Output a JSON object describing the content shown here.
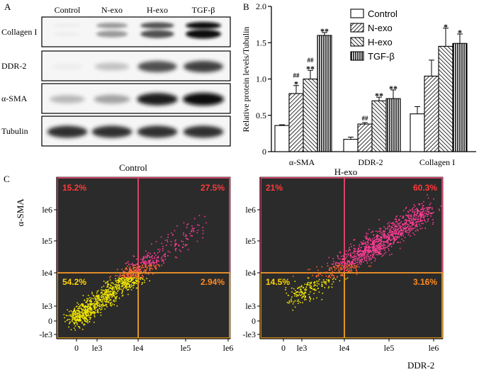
{
  "panels": {
    "a": "A",
    "b": "B",
    "c": "C"
  },
  "western_blot": {
    "lanes": [
      "Control",
      "N-exo",
      "H-exo",
      "TGF-β"
    ],
    "rows": [
      {
        "label": "Collagen I",
        "intensity": [
          0.05,
          0.55,
          0.8,
          1.0
        ]
      },
      {
        "label": "DDR-2",
        "intensity": [
          0.05,
          0.35,
          0.8,
          0.85
        ]
      },
      {
        "label": "α-SMA",
        "intensity": [
          0.4,
          0.5,
          0.95,
          1.0
        ]
      },
      {
        "label": "Tubulin",
        "intensity": [
          0.9,
          0.9,
          0.9,
          0.9
        ]
      }
    ]
  },
  "chart_data": [
    {
      "type": "bar",
      "panel": "B",
      "ylabel": "Relative protein levels/Tubulin",
      "ylim": [
        0,
        2.0
      ],
      "yticks": [
        "0",
        "0.5",
        "1.0",
        "1.5",
        "2.0"
      ],
      "categories": [
        "α-SMA",
        "DDR-2",
        "Collagen I"
      ],
      "series": [
        {
          "name": "Control",
          "values": [
            0.36,
            0.17,
            0.52
          ],
          "errors": [
            0.01,
            0.03,
            0.1
          ]
        },
        {
          "name": "N-exo",
          "values": [
            0.8,
            0.38,
            1.04
          ],
          "errors": [
            0.11,
            0.02,
            0.22
          ]
        },
        {
          "name": "H-exo",
          "values": [
            1.0,
            0.7,
            1.45
          ],
          "errors": [
            0.12,
            0.05,
            0.25
          ]
        },
        {
          "name": "TGF-β",
          "values": [
            1.6,
            0.73,
            1.49
          ],
          "errors": [
            0.04,
            0.12,
            0.13
          ]
        }
      ],
      "annotations": [
        {
          "category": 0,
          "series": 1,
          "marks": [
            "##",
            "*"
          ]
        },
        {
          "category": 0,
          "series": 2,
          "marks": [
            "##",
            "**"
          ]
        },
        {
          "category": 0,
          "series": 3,
          "marks": [
            "**"
          ]
        },
        {
          "category": 1,
          "series": 1,
          "marks": [
            "##"
          ]
        },
        {
          "category": 1,
          "series": 2,
          "marks": [
            "**"
          ]
        },
        {
          "category": 1,
          "series": 3,
          "marks": [
            "**"
          ]
        },
        {
          "category": 2,
          "series": 2,
          "marks": [
            "*"
          ]
        },
        {
          "category": 2,
          "series": 3,
          "marks": [
            "*"
          ]
        }
      ]
    },
    {
      "type": "scatter",
      "panel": "C",
      "title": "Control",
      "xlabel": "DDR-2",
      "ylabel": "α-SMA",
      "x_ticks": [
        "0",
        "le3",
        "le4",
        "le5",
        "le6"
      ],
      "y_ticks": [
        "le6",
        "le5",
        "le4",
        "le3",
        "0",
        "-le3"
      ],
      "quadrants": {
        "upper_left": "15.2%",
        "upper_right": "27.5%",
        "lower_left": "54.2%",
        "lower_right": "2.94%"
      }
    },
    {
      "type": "scatter",
      "panel": "C",
      "title": "H-exo",
      "xlabel": "DDR-2",
      "ylabel": "α-SMA",
      "x_ticks": [
        "0",
        "le3",
        "le4",
        "le5",
        "le6"
      ],
      "y_ticks": [
        "le6",
        "le5",
        "le4",
        "le3",
        "0",
        "-le3"
      ],
      "quadrants": {
        "upper_left": "21%",
        "upper_right": "60.3%",
        "lower_left": "14.5%",
        "lower_right": "3.16%"
      }
    }
  ],
  "colors": {
    "plot_bg": "#2b2b2b",
    "upper_dot": "#ff3c96",
    "mid_dot": "#ff6633",
    "lower_dot": "#f2e600",
    "upper_gate": "#e8456f",
    "lower_gate": "#f0a020",
    "label_upper": "#ff3a3a",
    "label_lower_left": "#ffd200",
    "label_lower_right": "#ff8a20"
  }
}
